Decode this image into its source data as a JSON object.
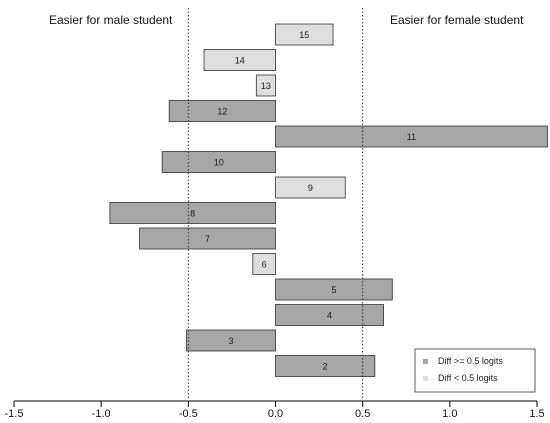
{
  "chart_data": {
    "type": "bar",
    "orientation": "horizontal",
    "title": "",
    "xlabel": "",
    "ylabel": "",
    "xlim": [
      -1.5,
      1.5
    ],
    "x_ticks": [
      -1.5,
      -1.0,
      -0.5,
      0.0,
      0.5,
      1.0,
      1.5
    ],
    "x_tick_labels": [
      "-1.5",
      "-1.0",
      "-0.5",
      "0.0",
      "0.5",
      "1.0",
      "1.5"
    ],
    "reference_lines": [
      -0.5,
      0.5
    ],
    "annotations": {
      "left": "Easier for male student",
      "right": "Easier for female student"
    },
    "items": [
      {
        "label": "15",
        "value": 0.33,
        "group": "small"
      },
      {
        "label": "14",
        "value": -0.41,
        "group": "small"
      },
      {
        "label": "13",
        "value": -0.11,
        "group": "small"
      },
      {
        "label": "12",
        "value": -0.61,
        "group": "large"
      },
      {
        "label": "11",
        "value": 1.56,
        "group": "large"
      },
      {
        "label": "10",
        "value": -0.65,
        "group": "large"
      },
      {
        "label": "9",
        "value": 0.4,
        "group": "small"
      },
      {
        "label": "8",
        "value": -0.95,
        "group": "large"
      },
      {
        "label": "7",
        "value": -0.78,
        "group": "large"
      },
      {
        "label": "6",
        "value": -0.13,
        "group": "small"
      },
      {
        "label": "5",
        "value": 0.67,
        "group": "large"
      },
      {
        "label": "4",
        "value": 0.62,
        "group": "large"
      },
      {
        "label": "3",
        "value": -0.51,
        "group": "large"
      },
      {
        "label": "2",
        "value": 0.57,
        "group": "large"
      }
    ],
    "legend": {
      "position": "bottom-right",
      "entries": [
        {
          "key": "large",
          "label": "Diff >= 0.5 logits",
          "color": "#a6a6a6"
        },
        {
          "key": "small",
          "label": "Diff < 0.5 logits",
          "color": "#dedede"
        }
      ]
    },
    "grid": false
  }
}
